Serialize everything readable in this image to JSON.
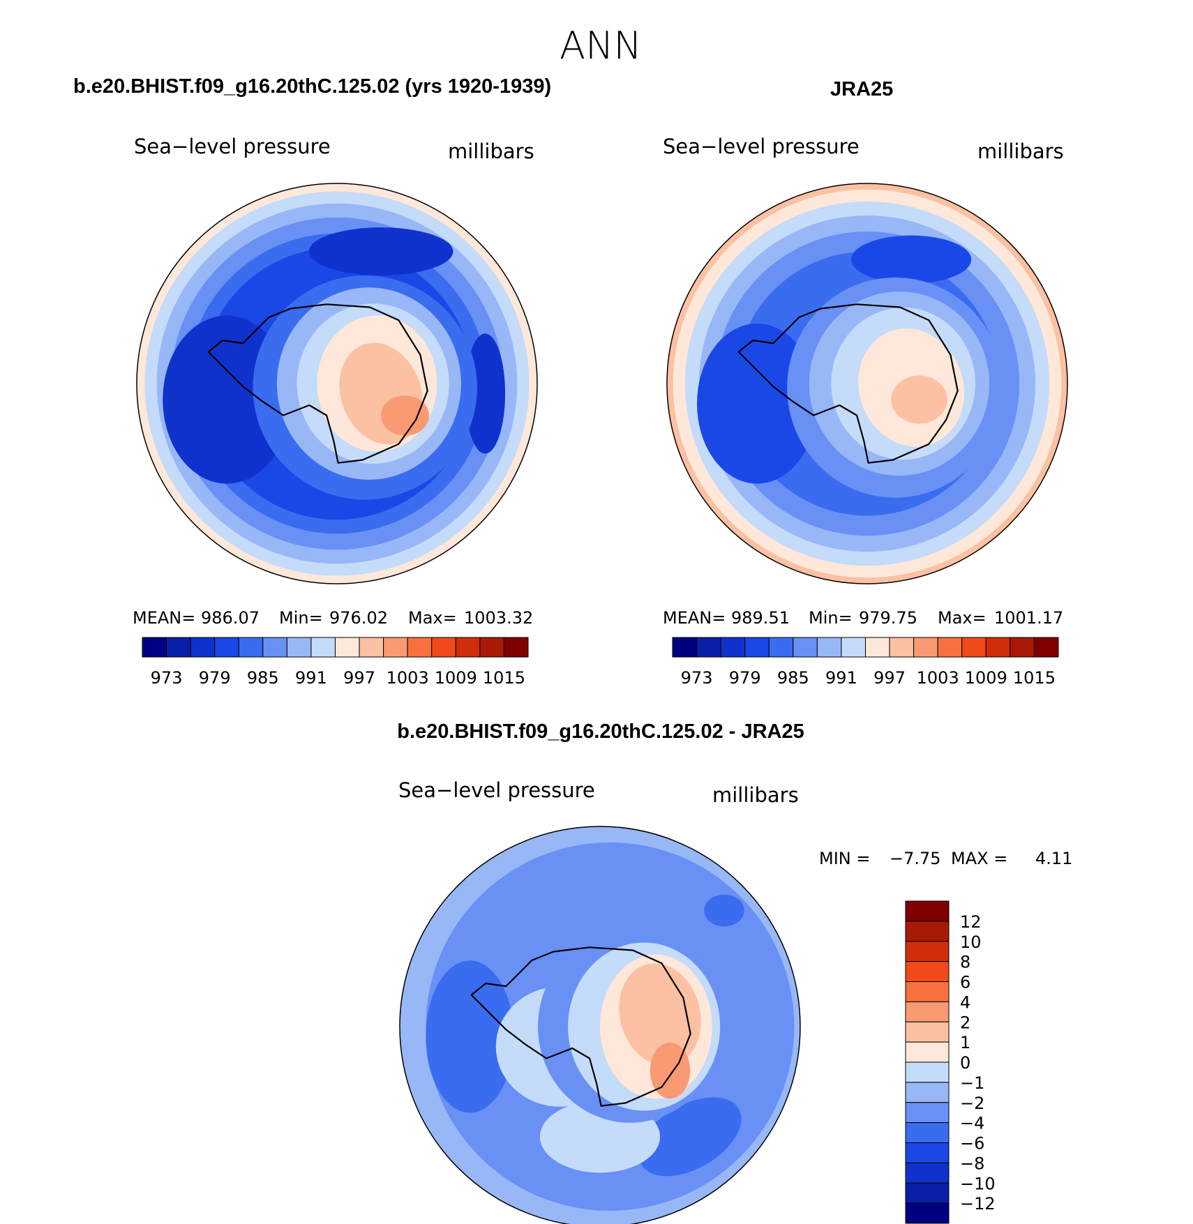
{
  "page_title": "ANN",
  "chart_data": [
    {
      "type": "heatmap",
      "projection": "south-polar-stereographic",
      "title": "b.e20.BHIST.f09_g16.20thC.125.02 (yrs 1920-1939)",
      "left_label": "Sea−level pressure",
      "right_label": "millibars",
      "stats": {
        "mean_label": "MEAN=",
        "mean": "986.07",
        "min_label": "Min=",
        "min": "976.02",
        "max_label": "Max=",
        "max": "1003.32"
      },
      "colorbar": {
        "orientation": "horizontal",
        "levels": [
          973,
          976,
          979,
          982,
          985,
          988,
          991,
          994,
          997,
          1000,
          1003,
          1006,
          1009,
          1012,
          1015
        ],
        "tick_labels": [
          "973",
          "979",
          "985",
          "991",
          "997",
          "1003",
          "1009",
          "1015"
        ]
      }
    },
    {
      "type": "heatmap",
      "projection": "south-polar-stereographic",
      "title": "JRA25",
      "left_label": "Sea−level pressure",
      "right_label": "millibars",
      "stats": {
        "mean_label": "MEAN=",
        "mean": "989.51",
        "min_label": "Min=",
        "min": "979.75",
        "max_label": "Max=",
        "max": "1001.17"
      },
      "colorbar": {
        "orientation": "horizontal",
        "levels": [
          973,
          976,
          979,
          982,
          985,
          988,
          991,
          994,
          997,
          1000,
          1003,
          1006,
          1009,
          1012,
          1015
        ],
        "tick_labels": [
          "973",
          "979",
          "985",
          "991",
          "997",
          "1003",
          "1009",
          "1015"
        ]
      }
    },
    {
      "type": "heatmap",
      "projection": "south-polar-stereographic",
      "title": "b.e20.BHIST.f09_g16.20thC.125.02 - JRA25",
      "left_label": "Sea−level pressure",
      "right_label": "millibars",
      "stats": {
        "min_label": "MIN =",
        "min": "−7.75",
        "max_label": "MAX =",
        "max": "4.11"
      },
      "colorbar": {
        "orientation": "vertical",
        "levels": [
          -12,
          -10,
          -8,
          -6,
          -4,
          -2,
          -1,
          0,
          1,
          2,
          4,
          6,
          8,
          10,
          12
        ],
        "tick_labels": [
          "−12",
          "−10",
          "−8",
          "−6",
          "−4",
          "−2",
          "−1",
          "0",
          "1",
          "2",
          "4",
          "6",
          "8",
          "10",
          "12"
        ]
      }
    }
  ],
  "palette": [
    "#000080",
    "#0a1fa8",
    "#1032cc",
    "#1a48e6",
    "#3a6cf0",
    "#6990f5",
    "#98b7f7",
    "#c4dbfa",
    "#ffe8d9",
    "#fcc0a2",
    "#fa9a72",
    "#f7703f",
    "#f04a1a",
    "#d02e0b",
    "#a81a06",
    "#800000"
  ]
}
